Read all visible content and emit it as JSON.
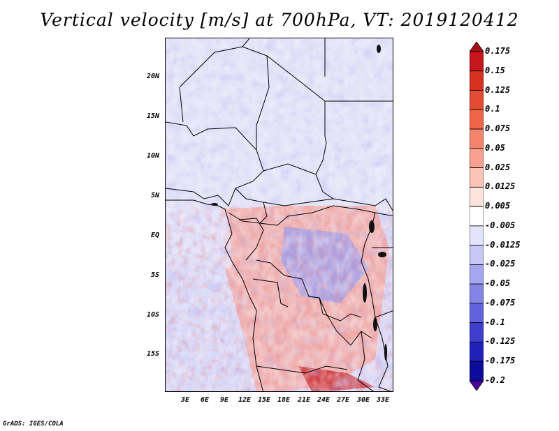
{
  "title": "Vertical velocity [m/s] at 700hPa, VT: 2019120412",
  "credit": "GrADS: IGES/COLA",
  "lat_labels": [
    "20N",
    "15N",
    "10N",
    "5N",
    "EQ",
    "5S",
    "10S",
    "15S"
  ],
  "lon_labels": [
    "3E",
    "6E",
    "9E",
    "12E",
    "15E",
    "18E",
    "21E",
    "24E",
    "27E",
    "30E",
    "33E"
  ],
  "colorbar": {
    "labels": [
      "0.175",
      "0.15",
      "0.125",
      "0.1",
      "0.075",
      "0.05",
      "0.025",
      "0.0125",
      "0.005",
      "-0.005",
      "-0.0125",
      "-0.025",
      "-0.05",
      "-0.075",
      "-0.1",
      "-0.125",
      "-0.175",
      "-0.2"
    ],
    "colors": [
      "#a50f15",
      "#c4161c",
      "#d7301f",
      "#e34a33",
      "#ef6548",
      "#f4836b",
      "#f8a190",
      "#fbc3b5",
      "#fde3dc",
      "#ffffff",
      "#e3e3fb",
      "#c6c6f7",
      "#a6a6f0",
      "#8484e6",
      "#6262dc",
      "#3e3ece",
      "#2020bb",
      "#0c0c9a",
      "#4b0099"
    ]
  }
}
